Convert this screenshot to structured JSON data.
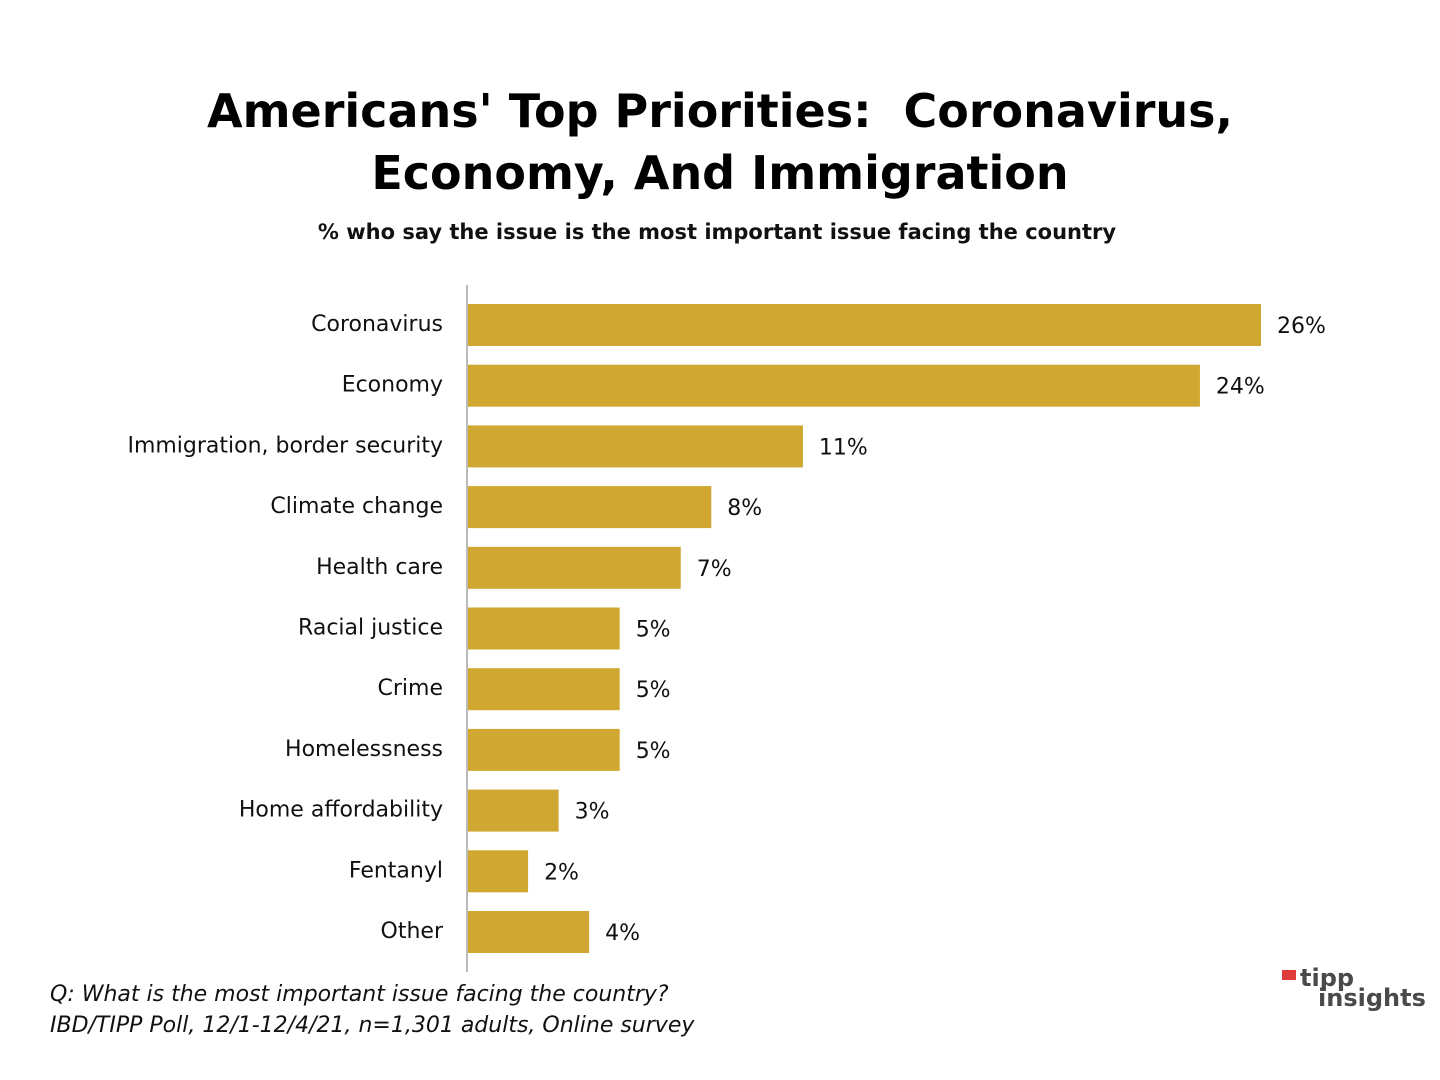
{
  "chart_data": {
    "type": "bar",
    "orientation": "horizontal",
    "title": "Americans' Top Priorities:  Coronavirus, Economy, And Immigration",
    "subtitle": "% who say the issue is the most important issue facing the country",
    "categories": [
      "Coronavirus",
      "Economy",
      "Immigration, border security",
      "Climate change",
      "Health care",
      "Racial justice",
      "Crime",
      "Homelessness",
      "Home affordability",
      "Fentanyl",
      "Other"
    ],
    "values": [
      26,
      24,
      11,
      8,
      7,
      5,
      5,
      5,
      3,
      2,
      4
    ],
    "value_labels": [
      "26%",
      "24%",
      "11%",
      "8%",
      "7%",
      "5%",
      "5%",
      "5%",
      "3%",
      "2%",
      "4%"
    ],
    "color": "#cfa731",
    "notes": [
      "Q:  What is the most important issue facing the country?",
      "IBD/TIPP Poll, 12/1-12/4/21, n=1,301 adults, Online survey"
    ],
    "logo": [
      "tipp",
      "insights"
    ]
  }
}
